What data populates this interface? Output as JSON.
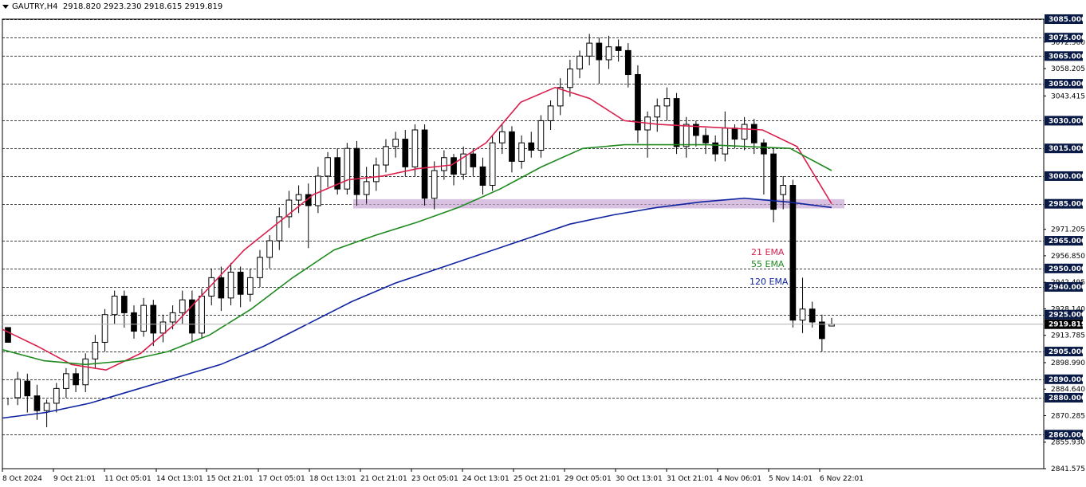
{
  "header": {
    "symbol": "GAUTRY,H4",
    "ohlc": "2918.820 2923.230 2918.615 2919.819",
    "menu_icon": "triangle-down-icon"
  },
  "chart_data": {
    "type": "candlestick",
    "ylim": [
      2841.575,
      3085.0
    ],
    "current_price": "2919.819",
    "price_scale_labels": [
      "3072.560",
      "3058.205",
      "3043.415",
      "2971.205",
      "2956.850",
      "2942.495",
      "2928.140",
      "2913.785",
      "2898.990",
      "2884.640",
      "2870.285",
      "2855.930",
      "2841.575"
    ],
    "horizontal_levels": [
      "3085.000",
      "3075.000",
      "3065.000",
      "3050.000",
      "3030.000",
      "3015.000",
      "3000.000",
      "2985.000",
      "2965.000",
      "2950.000",
      "2940.000",
      "2925.000",
      "2905.000",
      "2890.000",
      "2880.000",
      "2860.000"
    ],
    "support_zone": {
      "from": 2982.5,
      "to": 2987.5,
      "color": "#c9a6d6"
    },
    "x_labels": [
      "8 Oct 2024",
      "9 Oct 21:01",
      "11 Oct 05:01",
      "14 Oct 13:01",
      "15 Oct 21:01",
      "17 Oct 05:01",
      "18 Oct 13:01",
      "21 Oct 21:01",
      "23 Oct 05:01",
      "24 Oct 13:01",
      "25 Oct 21:01",
      "29 Oct 05:01",
      "30 Oct 13:01",
      "31 Oct 21:01",
      "4 Nov 06:01",
      "5 Nov 14:01",
      "6 Nov 22:01"
    ],
    "series": [
      {
        "name": "21 EMA",
        "color": "#d9204e"
      },
      {
        "name": "55 EMA",
        "color": "#1f8a1f"
      },
      {
        "name": "120 EMA",
        "color": "#1024a0"
      }
    ],
    "ema21": [
      2917,
      2908,
      2898,
      2895,
      2904,
      2920,
      2940,
      2960,
      2975,
      2990,
      2998,
      3000,
      3004,
      3006,
      3018,
      3040,
      3048,
      3042,
      3030,
      3028,
      3027,
      3026,
      3025,
      3016,
      2985
    ],
    "ema55": [
      2906,
      2900,
      2898,
      2900,
      2905,
      2914,
      2928,
      2945,
      2960,
      2968,
      2975,
      2983,
      2993,
      3005,
      3015,
      3017,
      3017,
      3017,
      3016,
      3015,
      3003
    ],
    "ema120": [
      2869,
      2872,
      2877,
      2884,
      2891,
      2898,
      2908,
      2920,
      2932,
      2942,
      2950,
      2958,
      2966,
      2974,
      2979,
      2983,
      2986,
      2988,
      2986,
      2983
    ],
    "candles": [
      [
        2918,
        2910,
        2880,
        2876,
        2925
      ],
      [
        2880,
        2890,
        2876,
        2894
      ],
      [
        2889,
        2881,
        2872,
        2893
      ],
      [
        2881,
        2873,
        2868,
        2887
      ],
      [
        2873,
        2877,
        2864,
        2879
      ],
      [
        2877,
        2885,
        2872,
        2888
      ],
      [
        2885,
        2893,
        2880,
        2896
      ],
      [
        2893,
        2887,
        2883,
        2896
      ],
      [
        2887,
        2901,
        2883,
        2904
      ],
      [
        2901,
        2910,
        2896,
        2914
      ],
      [
        2910,
        2925,
        2905,
        2928
      ],
      [
        2925,
        2935,
        2920,
        2938
      ],
      [
        2935,
        2926,
        2918,
        2938
      ],
      [
        2926,
        2916,
        2912,
        2930
      ],
      [
        2916,
        2930,
        2913,
        2934
      ],
      [
        2930,
        2915,
        2908,
        2933
      ],
      [
        2915,
        2921,
        2910,
        2925
      ],
      [
        2921,
        2926,
        2917,
        2930
      ],
      [
        2926,
        2933,
        2920,
        2938
      ],
      [
        2933,
        2915,
        2910,
        2938
      ],
      [
        2915,
        2935,
        2912,
        2939
      ],
      [
        2935,
        2945,
        2930,
        2950
      ],
      [
        2945,
        2934,
        2927,
        2951
      ],
      [
        2934,
        2948,
        2930,
        2953
      ],
      [
        2948,
        2936,
        2929,
        2951
      ],
      [
        2936,
        2945,
        2932,
        2950
      ],
      [
        2945,
        2956,
        2940,
        2960
      ],
      [
        2956,
        2965,
        2950,
        2968
      ],
      [
        2965,
        2978,
        2960,
        2983
      ],
      [
        2978,
        2987,
        2972,
        2992
      ],
      [
        2987,
        2990,
        2980,
        2995
      ],
      [
        2990,
        2984,
        2961,
        2996
      ],
      [
        2984,
        3000,
        2980,
        3005
      ],
      [
        3000,
        3010,
        2994,
        3013
      ],
      [
        3010,
        2993,
        2990,
        3015
      ],
      [
        2993,
        3015,
        2990,
        3018
      ],
      [
        3015,
        2990,
        2984,
        3019
      ],
      [
        2990,
        2997,
        2985,
        3005
      ],
      [
        2997,
        3006,
        2992,
        3010
      ],
      [
        3006,
        3016,
        3002,
        3020
      ],
      [
        3016,
        3020,
        3010,
        3024
      ],
      [
        3020,
        3005,
        3000,
        3025
      ],
      [
        3005,
        3025,
        3000,
        3028
      ],
      [
        3025,
        2988,
        2984,
        3028
      ],
      [
        2988,
        3003,
        2982,
        3008
      ],
      [
        3003,
        3010,
        2998,
        3014
      ],
      [
        3010,
        3001,
        2995,
        3012
      ],
      [
        3001,
        3012,
        2998,
        3016
      ],
      [
        3012,
        3005,
        3000,
        3015
      ],
      [
        3005,
        2995,
        2990,
        3010
      ],
      [
        2995,
        3018,
        2992,
        3022
      ],
      [
        3018,
        3024,
        3012,
        3028
      ],
      [
        3024,
        3008,
        3002,
        3027
      ],
      [
        3008,
        3018,
        3004,
        3022
      ],
      [
        3018,
        3014,
        3010,
        3024
      ],
      [
        3014,
        3030,
        3010,
        3033
      ],
      [
        3030,
        3038,
        3025,
        3041
      ],
      [
        3038,
        3048,
        3033,
        3053
      ],
      [
        3048,
        3058,
        3043,
        3063
      ],
      [
        3058,
        3065,
        3053,
        3068
      ],
      [
        3065,
        3072,
        3060,
        3077
      ],
      [
        3072,
        3063,
        3050,
        3075
      ],
      [
        3063,
        3070,
        3058,
        3076
      ],
      [
        3070,
        3068,
        3062,
        3074
      ],
      [
        3068,
        3055,
        3048,
        3072
      ],
      [
        3055,
        3025,
        3018,
        3060
      ],
      [
        3025,
        3032,
        3010,
        3035
      ],
      [
        3032,
        3038,
        3024,
        3042
      ],
      [
        3038,
        3042,
        3030,
        3048
      ],
      [
        3042,
        3016,
        3012,
        3045
      ],
      [
        3016,
        3028,
        3010,
        3032
      ],
      [
        3028,
        3022,
        3016,
        3030
      ],
      [
        3022,
        3018,
        3012,
        3026
      ],
      [
        3018,
        3012,
        3008,
        3022
      ],
      [
        3012,
        3026,
        3008,
        3035
      ],
      [
        3026,
        3020,
        3015,
        3028
      ],
      [
        3020,
        3028,
        3014,
        3032
      ],
      [
        3028,
        3018,
        3012,
        3031
      ],
      [
        3018,
        3012,
        2990,
        3020
      ],
      [
        3012,
        2982,
        2975,
        3015
      ],
      [
        2990,
        2995,
        2982,
        3000
      ],
      [
        2995,
        2922,
        2918,
        2998
      ],
      [
        2922,
        2928,
        2915,
        2945
      ],
      [
        2928,
        2921,
        2918,
        2932
      ],
      [
        2921,
        2912,
        2905,
        2925
      ],
      [
        2918.82,
        2919.82,
        2918.62,
        2923.23
      ]
    ]
  }
}
